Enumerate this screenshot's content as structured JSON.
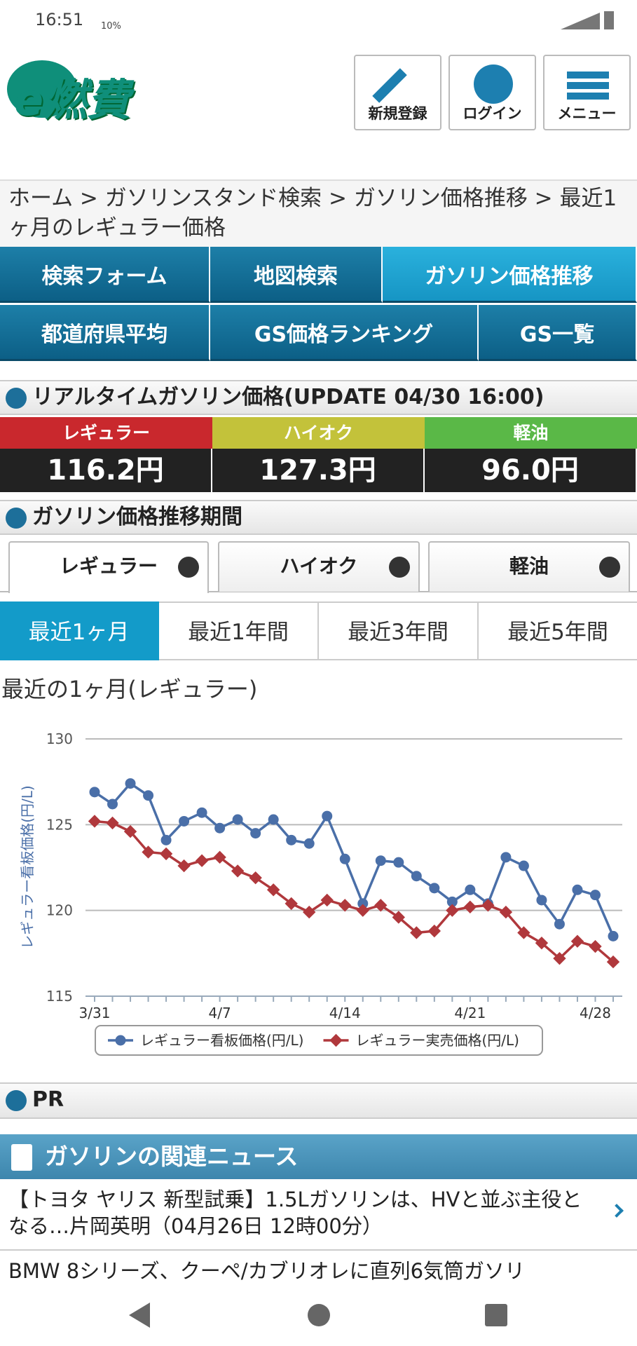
{
  "status_bar": {
    "time": "16:51",
    "temp": "10%"
  },
  "header": {
    "logo": "e燃費",
    "buttons": [
      "新規登録",
      "ログイン",
      "メニュー"
    ]
  },
  "breadcrumb": "ホーム > ガソリンスタンド検索 > ガソリン価格推移 > 最近1ヶ月のレギュラー価格",
  "nav": [
    "検索フォーム",
    "地図検索",
    "ガソリン価格推移",
    "都道府県平均",
    "GS価格ランキング",
    "GS一覧"
  ],
  "realtime": {
    "title": "リアルタイムガソリン価格(UPDATE 04/30 16:00)",
    "prices": [
      {
        "label": "レギュラー",
        "price": "116.2円",
        "color": "#c9282d"
      },
      {
        "label": "ハイオク",
        "price": "127.3円",
        "color": "#c3c23a"
      },
      {
        "label": "軽油",
        "price": "96.0円",
        "color": "#5ab847"
      }
    ]
  },
  "period": {
    "title": "ガソリン価格推移期間",
    "fuel_tabs": [
      "レギュラー",
      "ハイオク",
      "軽油"
    ],
    "range_tabs": [
      "最近1ヶ月",
      "最近1年間",
      "最近3年間",
      "最近5年間"
    ]
  },
  "chart_data": {
    "type": "line",
    "title": "最近の1ヶ月(レギュラー)",
    "y_label": "レギュラー看板価格(円/L)",
    "categories": [
      "3/31",
      null,
      null,
      null,
      null,
      null,
      null,
      "4/7",
      null,
      null,
      null,
      null,
      null,
      null,
      "4/14",
      null,
      null,
      null,
      null,
      null,
      null,
      "4/21",
      null,
      null,
      null,
      null,
      null,
      null,
      "4/28",
      null
    ],
    "series": [
      {
        "name": "レギュラー看板価格(円/L)",
        "color": "#4a6fa8",
        "marker": "circle",
        "values": [
          126.9,
          126.2,
          127.4,
          126.7,
          124.1,
          125.2,
          125.7,
          124.8,
          125.3,
          124.5,
          125.3,
          124.1,
          123.9,
          125.5,
          123.0,
          120.4,
          122.9,
          122.8,
          122.0,
          121.3,
          120.5,
          121.2,
          120.4,
          123.1,
          122.6,
          120.6,
          119.2,
          121.2,
          120.9,
          118.5
        ]
      },
      {
        "name": "レギュラー実売価格(円/L)",
        "color": "#b0383c",
        "marker": "diamond",
        "values": [
          125.2,
          125.1,
          124.6,
          123.4,
          123.3,
          122.6,
          122.9,
          123.1,
          122.3,
          121.9,
          121.2,
          120.4,
          119.9,
          120.6,
          120.3,
          120.0,
          120.3,
          119.6,
          118.7,
          118.8,
          120.0,
          120.2,
          120.3,
          119.9,
          118.7,
          118.1,
          117.2,
          118.2,
          117.9,
          117.0
        ]
      }
    ],
    "ylim": [
      115,
      130
    ],
    "yticks": [
      115,
      120,
      125,
      130
    ],
    "grid": true,
    "legend": "bottom"
  },
  "pr": "PR",
  "news": {
    "title": "ガソリンの関連ニュース",
    "items": [
      "【トヨタ ヤリス 新型試乗】1.5Lガソリンは、HVと並ぶ主役となる…片岡英明（04月26日 12時00分）",
      "BMW 8シリーズ、クーペ/カブリオレに直列6気筒ガソリ"
    ]
  }
}
